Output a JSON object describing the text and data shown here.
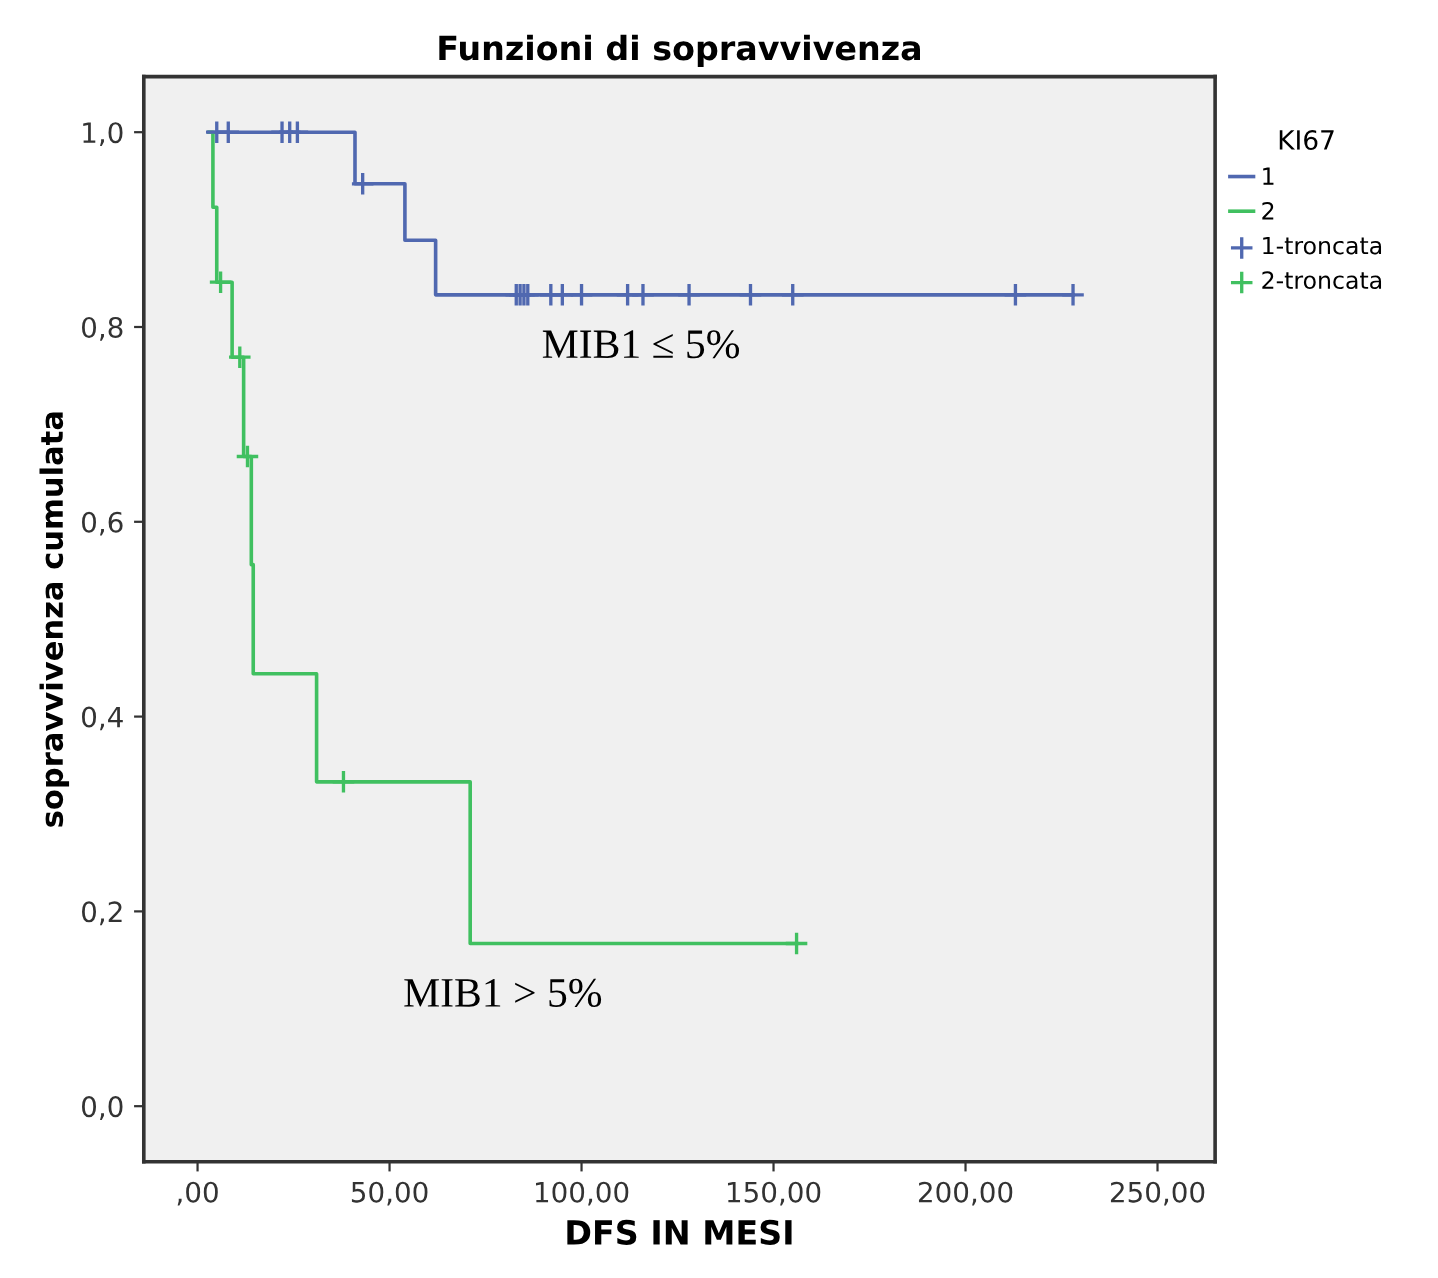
{
  "chart_data": {
    "type": "step",
    "title": "Funzioni di sopravvivenza",
    "xlabel": "DFS IN MESI",
    "ylabel": "sopravvivenza cumulata",
    "legend_title": "KI67",
    "series": [
      {
        "name": "1",
        "color": "#5068b0",
        "x": [
          3,
          41,
          54,
          62,
          228
        ],
        "values": [
          1.0,
          0.947,
          0.889,
          0.833,
          0.833
        ]
      },
      {
        "name": "2",
        "color": "#40c060",
        "x": [
          3,
          4,
          5,
          9,
          12,
          14,
          14.5,
          31,
          71,
          156
        ],
        "values": [
          1.0,
          0.923,
          0.846,
          0.769,
          0.667,
          0.556,
          0.444,
          0.333,
          0.167,
          0.167
        ]
      },
      {
        "name": "1-troncata",
        "type": "scatter",
        "marker": "cross",
        "color": "#5068b0",
        "x": [
          5,
          8,
          22,
          24,
          26,
          43,
          83,
          84,
          85,
          86,
          92,
          95,
          100,
          112,
          116,
          128,
          144,
          155,
          213,
          228
        ],
        "values": [
          1.0,
          1.0,
          1.0,
          1.0,
          1.0,
          0.947,
          0.833,
          0.833,
          0.833,
          0.833,
          0.833,
          0.833,
          0.833,
          0.833,
          0.833,
          0.833,
          0.833,
          0.833,
          0.833,
          0.833
        ]
      },
      {
        "name": "2-troncata",
        "type": "scatter",
        "marker": "cross",
        "color": "#40c060",
        "x": [
          6,
          11,
          13,
          38,
          156
        ],
        "values": [
          0.846,
          0.769,
          0.667,
          0.333,
          0.167
        ]
      }
    ],
    "annotations": [
      "MIB1 ≤ 5%",
      "MIB1 > 5%"
    ],
    "xlim": [
      -14,
      265
    ],
    "ylim": [
      -0.057,
      1.057
    ],
    "xticks": [
      {
        "value": 0,
        "label": ",00"
      },
      {
        "value": 50,
        "label": "50,00"
      },
      {
        "value": 100,
        "label": "100,00"
      },
      {
        "value": 150,
        "label": "150,00"
      },
      {
        "value": 200,
        "label": "200,00"
      },
      {
        "value": 250,
        "label": "250,00"
      }
    ],
    "yticks": [
      {
        "value": 0,
        "label": "0,0"
      },
      {
        "value": 0.2,
        "label": "0,2"
      },
      {
        "value": 0.4,
        "label": "0,4"
      },
      {
        "value": 0.6,
        "label": "0,6"
      },
      {
        "value": 0.8,
        "label": "0,8"
      },
      {
        "value": 1.0,
        "label": "1,0"
      }
    ],
    "grid": false,
    "legend": "right"
  }
}
